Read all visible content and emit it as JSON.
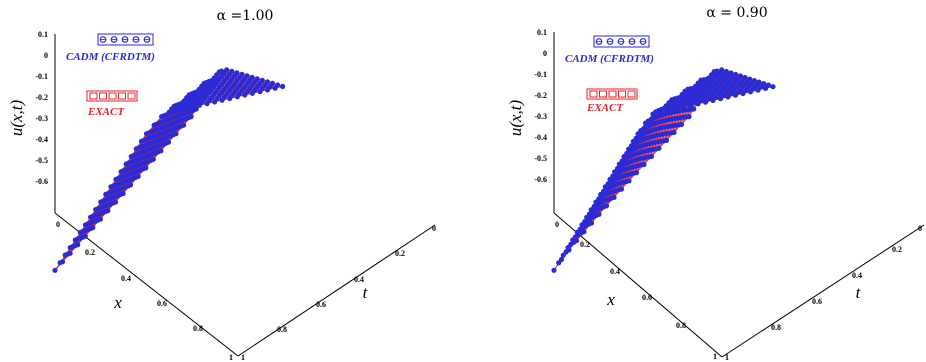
{
  "chart_data": [
    {
      "type": "surface",
      "title": "α =1.00",
      "alpha": 1.0,
      "zlabel": "u(x,t)",
      "xlabel": "x",
      "ylabel": "t",
      "z_ticks": [
        "0.1",
        "0",
        "-0.1",
        "-0.2",
        "-0.3",
        "-0.4",
        "-0.5",
        "-0.6"
      ],
      "x_ticks": [
        "0",
        "0.2",
        "0.4",
        "0.6",
        "0.8",
        "1"
      ],
      "t_ticks": [
        "0",
        "0.2",
        "0.4",
        "0.6",
        "0.8",
        "1"
      ],
      "xlim": [
        0,
        1
      ],
      "tlim": [
        0,
        1
      ],
      "zlim": [
        -0.65,
        0.1
      ],
      "series": [
        {
          "name": "CADM (CFRDTM)",
          "marker": "circle",
          "color": "#2b2bd6"
        },
        {
          "name": "EXACT",
          "marker": "line",
          "color": "#e8202a"
        }
      ]
    },
    {
      "type": "surface",
      "title": "α = 0.90",
      "alpha": 0.9,
      "zlabel": "u(x,t)",
      "xlabel": "x",
      "ylabel": "t",
      "z_ticks": [
        "0.1",
        "0",
        "-0.1",
        "-0.2",
        "-0.3",
        "-0.4",
        "-0.5",
        "-0.6"
      ],
      "x_ticks": [
        "0",
        "0.2",
        "0.4",
        "0.6",
        "0.8",
        "1"
      ],
      "t_ticks": [
        "0",
        "0.2",
        "0.4",
        "0.6",
        "0.8",
        "1"
      ],
      "xlim": [
        0,
        1
      ],
      "tlim": [
        0,
        1
      ],
      "zlim": [
        -0.65,
        0.1
      ],
      "series": [
        {
          "name": "CADM (CFRDTM)",
          "marker": "circle",
          "color": "#2b2bd6"
        },
        {
          "name": "EXACT",
          "marker": "line",
          "color": "#e8202a"
        }
      ]
    }
  ]
}
